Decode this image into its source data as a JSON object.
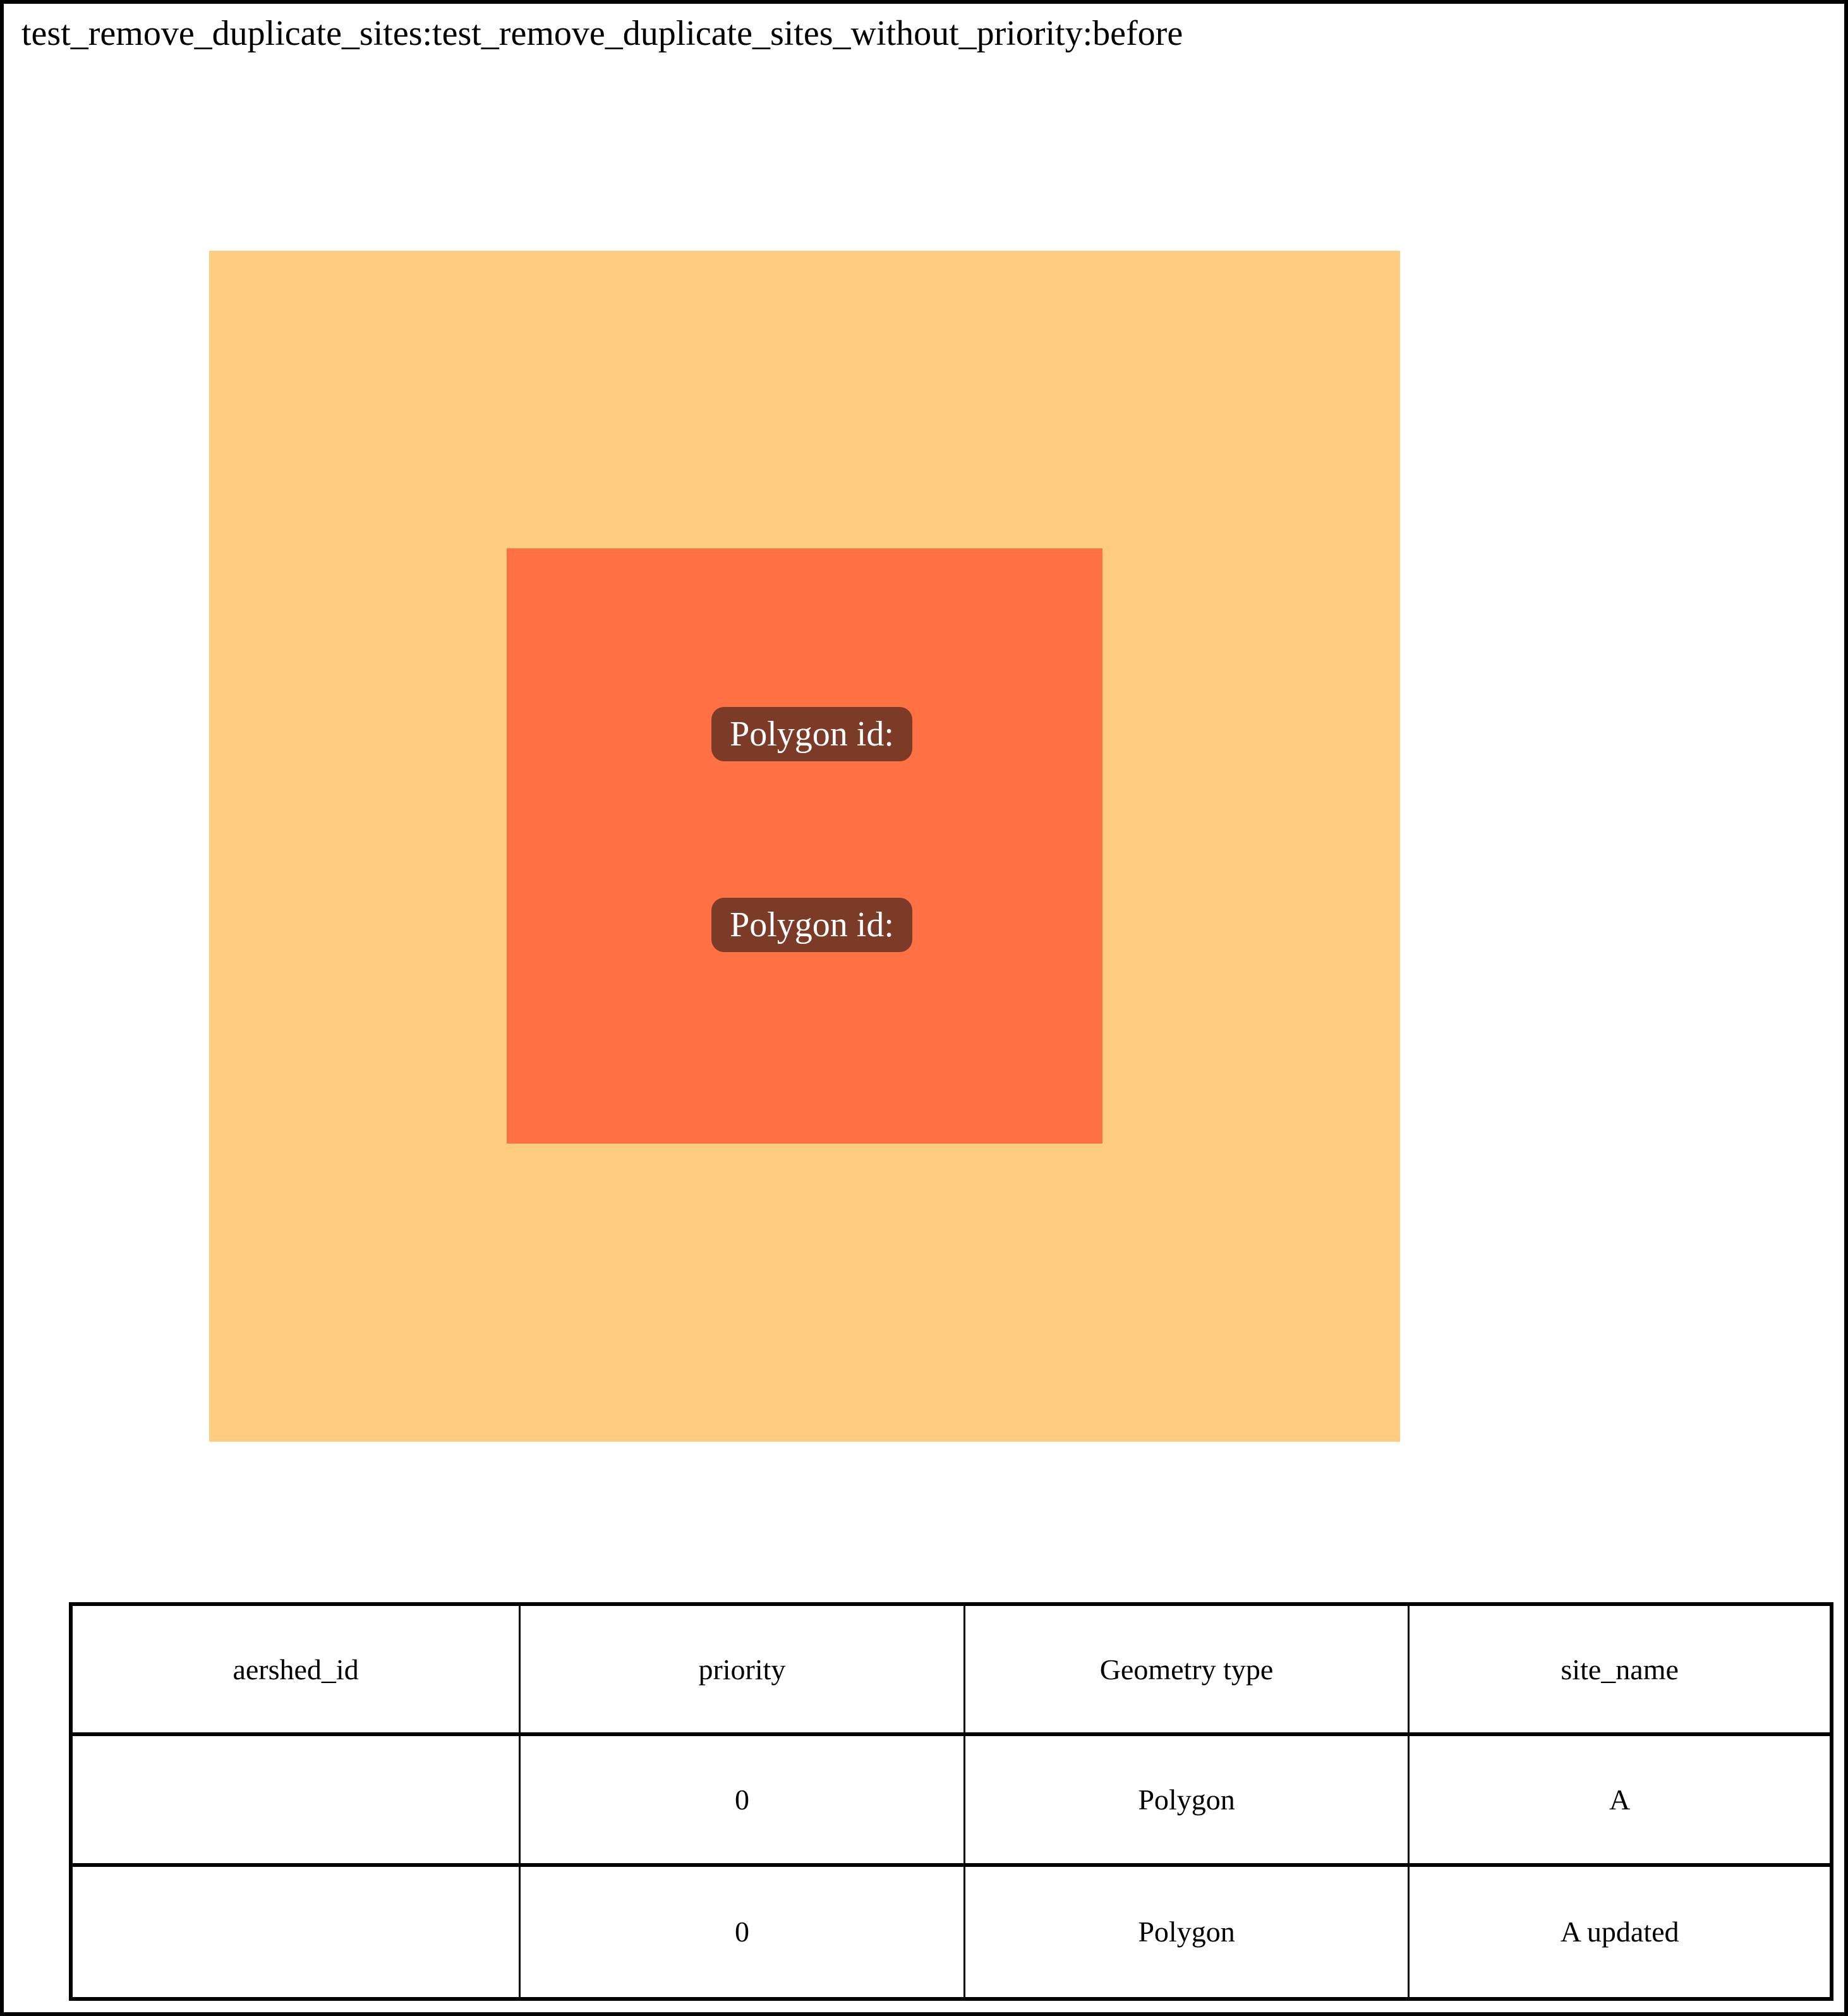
{
  "title": "test_remove_duplicate_sites:test_remove_duplicate_sites_without_priority:before",
  "figure": {
    "polygon_labels": [
      {
        "text": "Polygon id:"
      },
      {
        "text": "Polygon id:"
      }
    ],
    "colors": {
      "outer_polygon": "#FFCC80",
      "inner_polygon": "#FF7043",
      "label_background": "#7B3B26",
      "label_text": "#FFFFFF"
    }
  },
  "table": {
    "headers": [
      "aershed_id",
      "priority",
      "Geometry type",
      "site_name"
    ],
    "rows": [
      [
        "",
        "0",
        "Polygon",
        "A"
      ],
      [
        "",
        "0",
        "Polygon",
        "A updated"
      ]
    ]
  }
}
